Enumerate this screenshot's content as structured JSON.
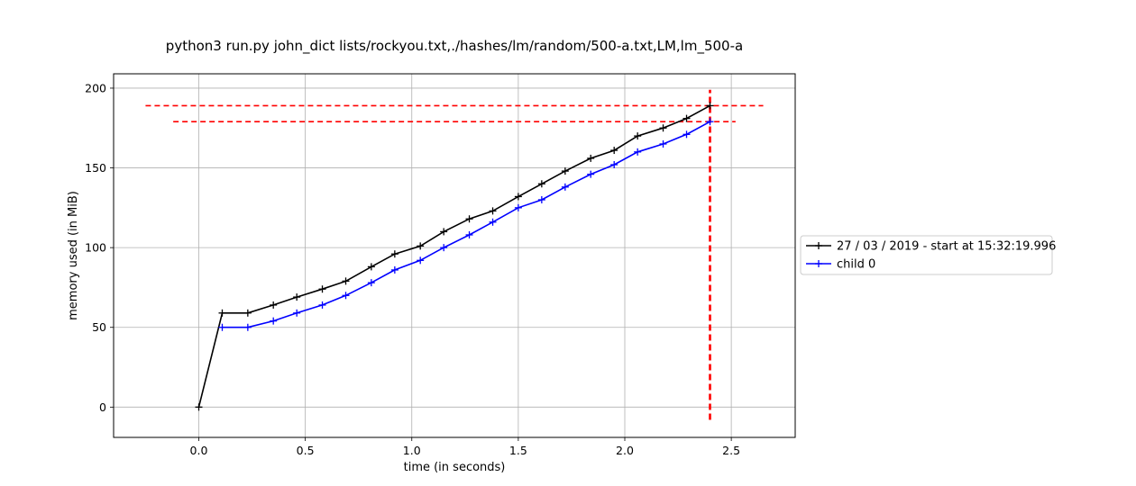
{
  "chart_data": {
    "type": "line",
    "title": "python3 run.py john_dict lists/rockyou.txt,./hashes/lm/random/500-a.txt,LM,lm_500-a",
    "xlabel": "time (in seconds)",
    "ylabel": "memory used (in MiB)",
    "xlim": [
      -0.4,
      2.8
    ],
    "ylim": [
      -19,
      209
    ],
    "xticks": [
      "0.0",
      "0.5",
      "1.0",
      "1.5",
      "2.0",
      "2.5"
    ],
    "yticks": [
      "0",
      "50",
      "100",
      "150",
      "200"
    ],
    "grid": true,
    "legend_position": "right",
    "series": [
      {
        "name": "27 / 03 / 2019 - start at 15:32:19.996",
        "color": "#000000",
        "marker": "plus",
        "x": [
          0.0,
          0.11,
          0.23,
          0.35,
          0.46,
          0.58,
          0.69,
          0.81,
          0.92,
          1.04,
          1.15,
          1.27,
          1.38,
          1.5,
          1.61,
          1.72,
          1.84,
          1.95,
          2.06,
          2.18,
          2.29,
          2.4
        ],
        "y": [
          0,
          59,
          59,
          64,
          69,
          74,
          79,
          88,
          96,
          101,
          110,
          118,
          123,
          132,
          140,
          148,
          156,
          161,
          170,
          175,
          181,
          189
        ]
      },
      {
        "name": "child 0",
        "color": "#0000ff",
        "marker": "plus",
        "x": [
          0.11,
          0.23,
          0.35,
          0.46,
          0.58,
          0.69,
          0.81,
          0.92,
          1.04,
          1.15,
          1.27,
          1.38,
          1.5,
          1.61,
          1.72,
          1.84,
          1.95,
          2.06,
          2.18,
          2.29,
          2.4
        ],
        "y": [
          50,
          50,
          54,
          59,
          64,
          70,
          78,
          86,
          92,
          100,
          108,
          116,
          125,
          130,
          138,
          146,
          152,
          160,
          165,
          171,
          179
        ]
      }
    ],
    "annotations": [
      {
        "type": "hline",
        "y": 189,
        "x_from": -0.25,
        "x_to": 2.65,
        "color": "#ff0000",
        "style": "dashed"
      },
      {
        "type": "hline",
        "y": 179,
        "x_from": -0.12,
        "x_to": 2.52,
        "color": "#ff0000",
        "style": "dashed"
      },
      {
        "type": "vline",
        "x": 2.4,
        "y_from": -8,
        "y_to": 199,
        "color": "#ff0000",
        "style": "dashed"
      }
    ]
  }
}
